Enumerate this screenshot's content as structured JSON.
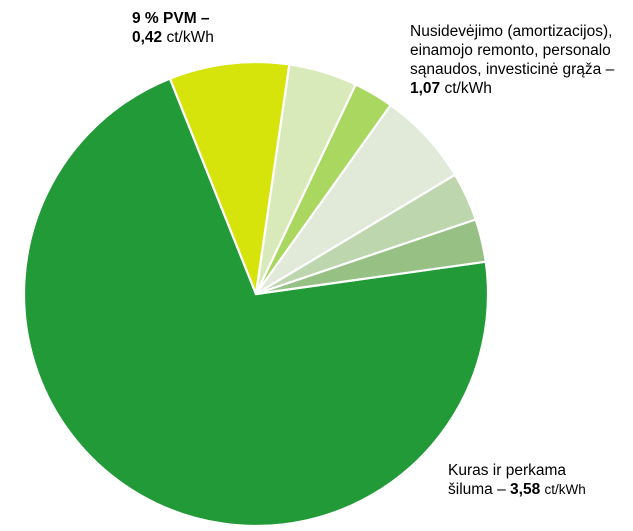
{
  "chart_data": {
    "type": "pie",
    "title": "",
    "slices": [
      {
        "value": 3.58,
        "color": "#239a38"
      },
      {
        "value": 0.42,
        "color": "#d6e40c"
      },
      {
        "value": 0.24,
        "color": "#d8eab9"
      },
      {
        "value": 0.14,
        "color": "#a9d760"
      },
      {
        "value": 0.33,
        "color": "#e1ead8"
      },
      {
        "value": 0.17,
        "color": "#bdd6ad"
      },
      {
        "value": 0.15,
        "color": "#97c084"
      }
    ],
    "annotations": {
      "vat": {
        "line1": "9 % PVM –",
        "value": "0,42",
        "unit": "ct/kWh"
      },
      "depreciation": {
        "line1": "Nusidevėjimo (amortizacijos),",
        "line2": "einamojo remonto, personalo",
        "line3": "sąnaudos, investicinė grąža –",
        "value": "1,07",
        "unit": "ct/kWh"
      },
      "fuel": {
        "line1": "Kuras ir perkama",
        "line2_prefix": "šiluma –",
        "value": "3,58",
        "unit": "ct/kWh"
      }
    },
    "slice_border_color": "#ffffff"
  }
}
